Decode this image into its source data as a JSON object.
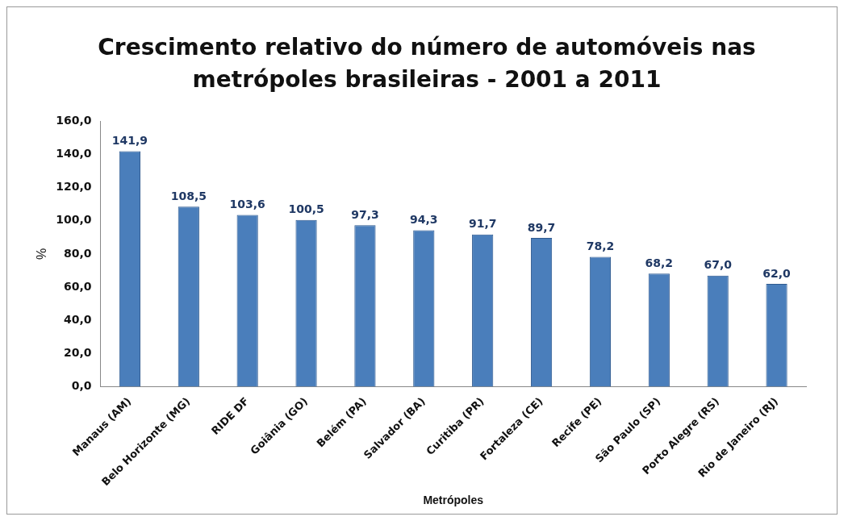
{
  "chart_data": {
    "type": "bar",
    "title": "Crescimento relativo do número de automóveis nas metrópoles brasileiras - 2001 a 2011",
    "xlabel": "Metrópoles",
    "ylabel": "%",
    "categories": [
      "Manaus (AM)",
      "Belo Horizonte (MG)",
      "RIDE DF",
      "Goiânia (GO)",
      "Belém (PA)",
      "Salvador (BA)",
      "Curitiba (PR)",
      "Fortaleza (CE)",
      "Recife (PE)",
      "São Paulo (SP)",
      "Porto Alegre (RS)",
      "Rio de Janeiro (RJ)"
    ],
    "values": [
      141.9,
      108.5,
      103.6,
      100.5,
      97.3,
      94.3,
      91.7,
      89.7,
      78.2,
      68.2,
      67.0,
      62.0
    ],
    "value_labels": [
      "141,9",
      "108,5",
      "103,6",
      "100,5",
      "97,3",
      "94,3",
      "91,7",
      "89,7",
      "78,2",
      "68,2",
      "67,0",
      "62,0"
    ],
    "color": "#4a7ebb",
    "ylim": [
      0,
      160
    ],
    "yticks": [
      {
        "value": 0,
        "label": "0,0"
      },
      {
        "value": 20,
        "label": "20,0"
      },
      {
        "value": 40,
        "label": "40,0"
      },
      {
        "value": 60,
        "label": "60,0"
      },
      {
        "value": 80,
        "label": "80,0"
      },
      {
        "value": 100,
        "label": "100,0"
      },
      {
        "value": 120,
        "label": "120,0"
      },
      {
        "value": 140,
        "label": "140,0"
      },
      {
        "value": 160,
        "label": "160,0"
      }
    ],
    "grid": false,
    "legend": false
  }
}
